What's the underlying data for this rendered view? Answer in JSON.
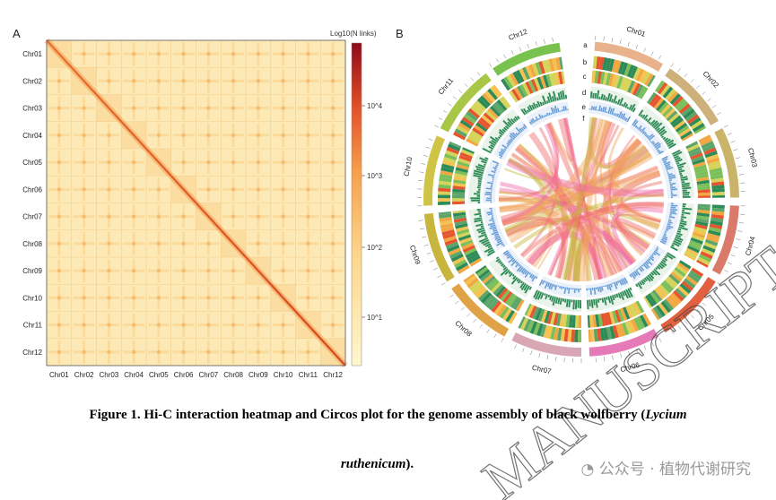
{
  "panels": {
    "a": "A",
    "b": "B"
  },
  "heatmap": {
    "chromosomes": [
      "Chr01",
      "Chr02",
      "Chr03",
      "Chr04",
      "Chr05",
      "Chr06",
      "Chr07",
      "Chr08",
      "Chr09",
      "Chr10",
      "Chr11",
      "Chr12"
    ],
    "colorbar_title": "Log10(N links)",
    "colorbar_ticks": [
      "10^4",
      "10^3",
      "10^2",
      "10^1"
    ]
  },
  "circos": {
    "chromosomes": [
      "Chr01",
      "Chr02",
      "Chr03",
      "Chr04",
      "Chr05",
      "Chr06",
      "Chr07",
      "Chr08",
      "Chr09",
      "Chr10",
      "Chr11",
      "Chr12"
    ],
    "track_labels": [
      "a",
      "b",
      "c",
      "d",
      "e",
      "f"
    ],
    "colors": {
      "link_orange": "#f2a35e",
      "link_pink": "#f06aa8",
      "link_olive": "#c6b83a",
      "link_red": "#ef6b6b",
      "gc_green": "#2e8b57",
      "density_blue": "#6b9fd6"
    }
  },
  "caption": {
    "line1_prefix": "Figure 1. Hi-C interaction heatmap and Circos plot for the genome assembly of black wolfberry (",
    "line1_italic": "Lycium",
    "line2_italic": "ruthenicum",
    "line2_suffix": ")."
  },
  "watermark": {
    "text": "MANUSCRIPT",
    "tag": "公众号 · 植物代谢研究"
  }
}
